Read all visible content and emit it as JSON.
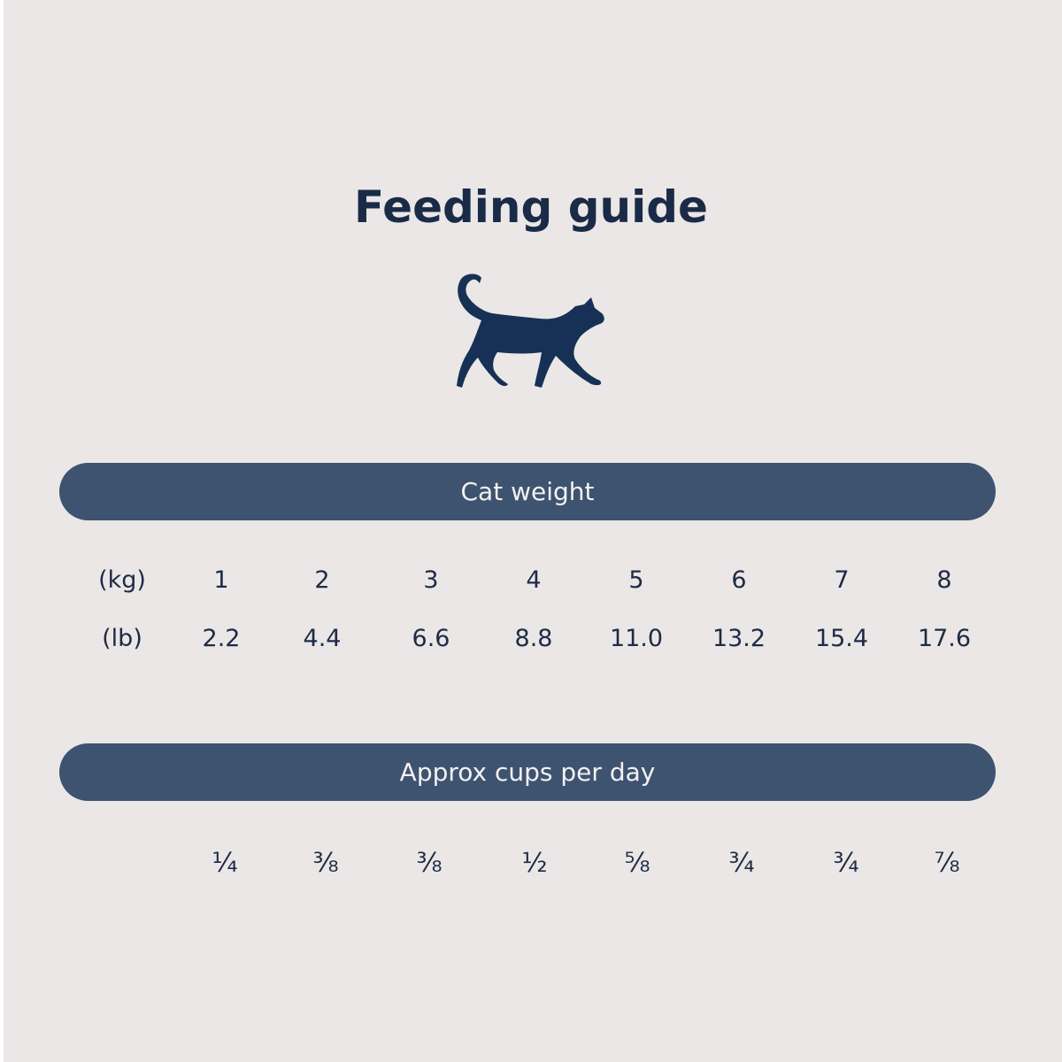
{
  "title": "Feeding guide",
  "icon": "cat-icon",
  "colors": {
    "background": "#ebe7e6",
    "bar": "#3d5370",
    "text": "#1d2b45",
    "cat": "#163155"
  },
  "weight_header": "Cat weight",
  "kg_label": "(kg)",
  "lb_label": "(lb)",
  "kg": [
    "1",
    "2",
    "3",
    "4",
    "5",
    "6",
    "7",
    "8"
  ],
  "lb": [
    "2.2",
    "4.4",
    "6.6",
    "8.8",
    "11.0",
    "13.2",
    "15.4",
    "17.6"
  ],
  "cups_header": "Approx cups per day",
  "cups": [
    "¼",
    "⅜",
    "⅜",
    "½",
    "⅝",
    "¾",
    "¾",
    "⅞"
  ]
}
